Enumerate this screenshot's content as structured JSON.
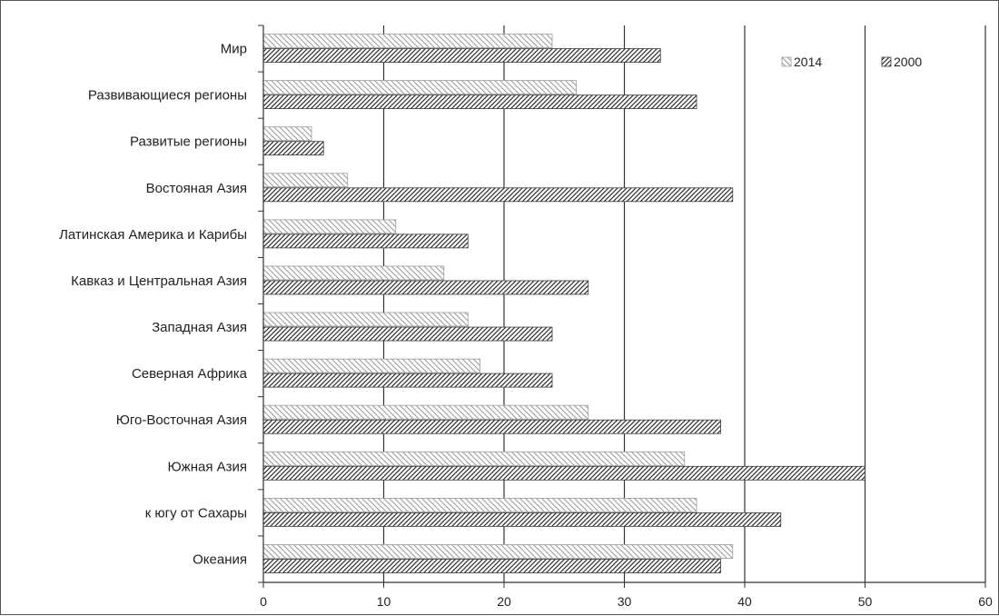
{
  "chart_data": {
    "type": "bar",
    "orientation": "horizontal",
    "categories": [
      "Мир",
      "Развивающиеся регионы",
      "Развитые регионы",
      "Востояная Азия",
      "Латинская Америка и Карибы",
      "Кавказ и Центральная Азия",
      "Западная Азия",
      "Северная Африка",
      "Юго-Восточная Азия",
      "Южная Азия",
      "к югу от Сахары",
      "Океания"
    ],
    "series": [
      {
        "name": "2014",
        "values": [
          24,
          26,
          4,
          7,
          11,
          15,
          17,
          18,
          27,
          35,
          36,
          39
        ]
      },
      {
        "name": "2000",
        "values": [
          33,
          36,
          5,
          39,
          17,
          27,
          24,
          24,
          38,
          50,
          43,
          38
        ]
      }
    ],
    "xlim": [
      0,
      60
    ],
    "xticks": [
      0,
      10,
      20,
      30,
      40,
      50,
      60
    ],
    "grid": "vertical",
    "legend": {
      "position": "top-right",
      "entries": [
        "2014",
        "2000"
      ]
    },
    "colors": {
      "series_2014": "#9a9a9a",
      "series_2000": "#3a3a3a",
      "axis": "#333333"
    }
  }
}
